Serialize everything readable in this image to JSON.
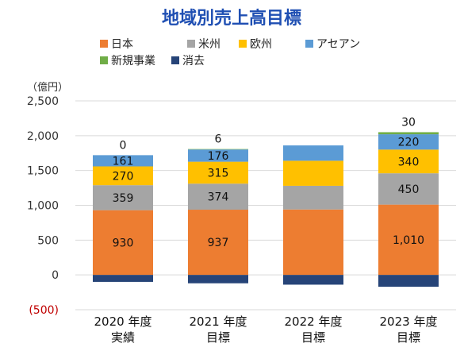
{
  "chart_data": {
    "type": "bar",
    "stacked": true,
    "title": "地域別売上高目標",
    "unit_label": "（億円）",
    "categories": [
      [
        "2020 年度",
        "実績"
      ],
      [
        "2021 年度",
        "目標"
      ],
      [
        "2022 年度",
        "目標"
      ],
      [
        "2023 年度",
        "目標"
      ]
    ],
    "ylim": [
      -500,
      2500
    ],
    "yticks": [
      -500,
      0,
      500,
      1000,
      1500,
      2000,
      2500
    ],
    "ytick_labels": [
      "(500)",
      "0",
      "500",
      "1,000",
      "1,500",
      "2,000",
      "2,500"
    ],
    "grid": true,
    "legend_position": "top",
    "series": [
      {
        "name": "日本",
        "color": "#ed7d31",
        "values": [
          930,
          937,
          940,
          1010
        ],
        "labels": [
          "930",
          "937",
          "",
          "1,010"
        ]
      },
      {
        "name": "米州",
        "color": "#a5a5a5",
        "values": [
          359,
          374,
          340,
          450
        ],
        "labels": [
          "359",
          "374",
          "",
          "450"
        ]
      },
      {
        "name": "欧州",
        "color": "#ffc000",
        "values": [
          270,
          315,
          360,
          340
        ],
        "labels": [
          "270",
          "315",
          "",
          "340"
        ]
      },
      {
        "name": "アセアン",
        "color": "#5b9bd5",
        "values": [
          161,
          176,
          220,
          220
        ],
        "labels": [
          "161",
          "176",
          "",
          "220"
        ]
      },
      {
        "name": "新規事業",
        "color": "#70ad47",
        "values": [
          0,
          6,
          0,
          30
        ],
        "labels": [
          "0",
          "6",
          "",
          "30"
        ]
      },
      {
        "name": "消去",
        "color": "#264478",
        "values": [
          -100,
          -120,
          -140,
          -170
        ],
        "labels": [
          "",
          "",
          "",
          ""
        ]
      }
    ]
  }
}
